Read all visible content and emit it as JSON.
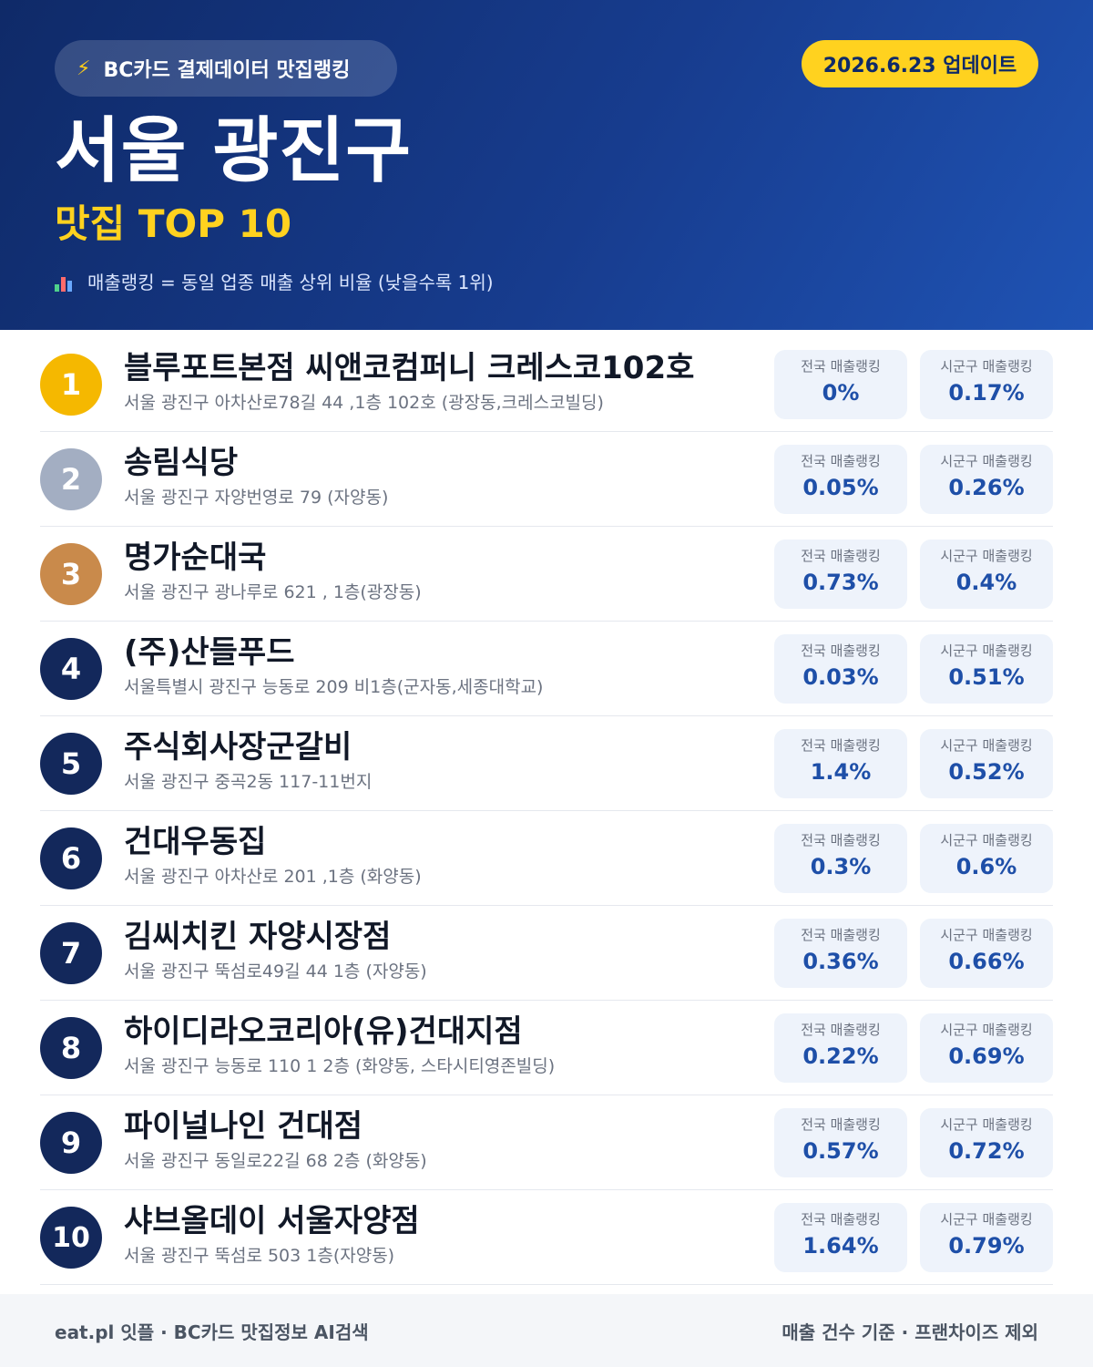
{
  "header": {
    "pill_label": "BC카드 결제데이터 맛집랭킹",
    "pill_icon": "lightning-bolt-icon",
    "date_badge": "2026.6.23 업데이트",
    "title": "서울 광진구",
    "subtitle": "맛집 TOP 10",
    "note_icon": "bar-chart-icon",
    "note": "매출랭킹 = 동일 업종 매출 상위 비율 (낮을수록 1위)"
  },
  "colors": {
    "gold": "#f5b800",
    "silver": "#a3aec2",
    "bronze": "#c98a4b",
    "navy": "#13285b",
    "accent_value": "#1e4fa8",
    "badge_yellow": "#ffd21f"
  },
  "stat_labels": {
    "national": "전국 매출랭킹",
    "local": "시군구 매출랭킹"
  },
  "restaurants": [
    {
      "rank": "1",
      "name": "블루포트본점 씨앤코컴퍼니 크레스코102호",
      "address": "서울 광진구 아차산로78길 44 ,1층 102호 (광장동,크레스코빌딩)",
      "national": "0%",
      "local": "0.17%"
    },
    {
      "rank": "2",
      "name": "송림식당",
      "address": "서울 광진구 자양번영로 79 (자양동)",
      "national": "0.05%",
      "local": "0.26%"
    },
    {
      "rank": "3",
      "name": "명가순대국",
      "address": "서울 광진구 광나루로 621 , 1층(광장동)",
      "national": "0.73%",
      "local": "0.4%"
    },
    {
      "rank": "4",
      "name": "(주)산들푸드",
      "address": "서울특별시 광진구 능동로 209 비1층(군자동,세종대학교)",
      "national": "0.03%",
      "local": "0.51%"
    },
    {
      "rank": "5",
      "name": "주식회사장군갈비",
      "address": "서울 광진구 중곡2동 117-11번지",
      "national": "1.4%",
      "local": "0.52%"
    },
    {
      "rank": "6",
      "name": "건대우동집",
      "address": "서울 광진구 아차산로 201 ,1층 (화양동)",
      "national": "0.3%",
      "local": "0.6%"
    },
    {
      "rank": "7",
      "name": "김씨치킨 자양시장점",
      "address": "서울 광진구 뚝섬로49길 44 1층 (자양동)",
      "national": "0.36%",
      "local": "0.66%"
    },
    {
      "rank": "8",
      "name": "하이디라오코리아(유)건대지점",
      "address": "서울 광진구 능동로 110 1 2층 (화양동, 스타시티영존빌딩)",
      "national": "0.22%",
      "local": "0.69%"
    },
    {
      "rank": "9",
      "name": "파이널나인 건대점",
      "address": "서울 광진구 동일로22길 68 2층 (화양동)",
      "national": "0.57%",
      "local": "0.72%"
    },
    {
      "rank": "10",
      "name": "샤브올데이 서울자양점",
      "address": "서울 광진구 뚝섬로 503 1층(자양동)",
      "national": "1.64%",
      "local": "0.79%"
    }
  ],
  "footer": {
    "left": "eat.pl 잇플 · BC카드 맛집정보 AI검색",
    "right": "매출 건수 기준 · 프랜차이즈 제외"
  }
}
